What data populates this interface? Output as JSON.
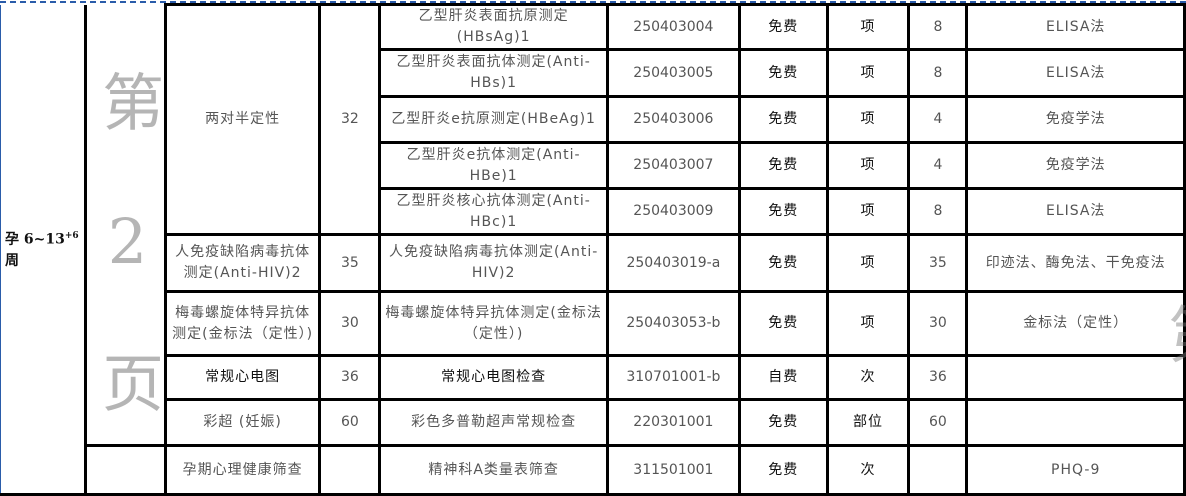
{
  "stage": {
    "prefix": "孕 6~13",
    "sup": "+6",
    "suffix": " 周"
  },
  "groups": [
    {
      "item": "两对半定性",
      "price": "32"
    },
    {
      "item": "人免疫缺陷病毒抗体测定(Anti-HIV)2",
      "price": "35"
    },
    {
      "item": "梅毒螺旋体特异抗体测定(金标法（定性）)",
      "price": "30"
    },
    {
      "item": "常规心电图",
      "price": "36"
    },
    {
      "item": "彩超 (妊娠)",
      "price": "60"
    },
    {
      "item": "孕期心理健康筛查",
      "price": ""
    }
  ],
  "rows": [
    {
      "name": "乙型肝炎表面抗原测定(HBsAg)1",
      "code": "250403004",
      "fee": "免费",
      "unit": "项",
      "price": "8",
      "method": "ELISA法"
    },
    {
      "name": "乙型肝炎表面抗体测定(Anti-HBs)1",
      "code": "250403005",
      "fee": "免费",
      "unit": "项",
      "price": "8",
      "method": "ELISA法"
    },
    {
      "name": "乙型肝炎e抗原测定(HBeAg)1",
      "code": "250403006",
      "fee": "免费",
      "unit": "项",
      "price": "4",
      "method": "免疫学法"
    },
    {
      "name": "乙型肝炎e抗体测定(Anti-HBe)1",
      "code": "250403007",
      "fee": "免费",
      "unit": "项",
      "price": "4",
      "method": "免疫学法"
    },
    {
      "name": "乙型肝炎核心抗体测定(Anti-HBc)1",
      "code": "250403009",
      "fee": "免费",
      "unit": "项",
      "price": "8",
      "method": "ELISA法"
    },
    {
      "name": "人免疫缺陷病毒抗体测定(Anti-HIV)2",
      "code": "250403019-a",
      "fee": "免费",
      "unit": "项",
      "price": "35",
      "method": "印迹法、酶免法、干免疫法"
    },
    {
      "name": "梅毒螺旋体特异抗体测定(金标法（定性）)",
      "code": "250403053-b",
      "fee": "免费",
      "unit": "项",
      "price": "30",
      "method": "金标法（定性）"
    },
    {
      "name": "常规心电图检查",
      "code": "310701001-b",
      "fee": "自费",
      "unit": "次",
      "price": "36",
      "method": ""
    },
    {
      "name": "彩色多普勒超声常规检查",
      "code": "220301001",
      "fee": "免费",
      "unit": "部位",
      "price": "60",
      "method": ""
    },
    {
      "name": "精神科A类量表筛查",
      "code": "311501001",
      "fee": "免费",
      "unit": "次",
      "price": "",
      "method": "PHQ-9"
    }
  ],
  "watermark": "第 2 页",
  "colors": {
    "border": "#000000",
    "page_break": "#2a5caa",
    "text": "#555555"
  }
}
